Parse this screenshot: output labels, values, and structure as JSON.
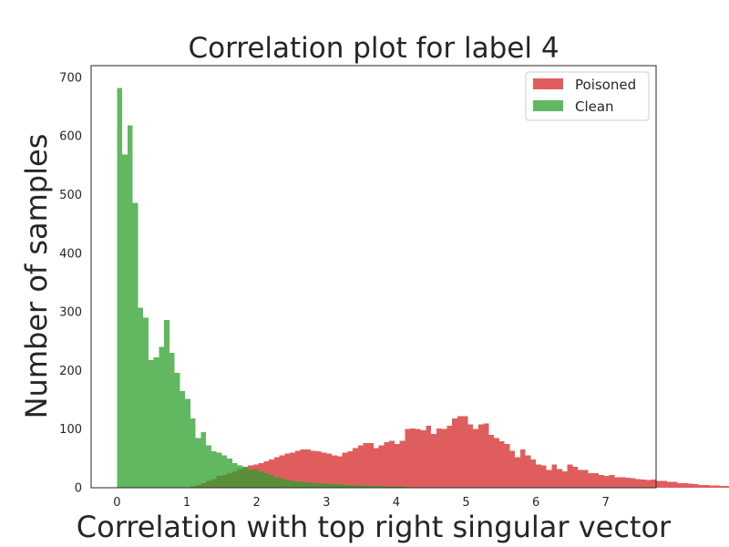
{
  "chart_data": {
    "type": "bar",
    "title": "Correlation plot for label 4",
    "xlabel": "Correlation with top right singular vector",
    "ylabel": "Number of samples",
    "xlim": [
      -0.37,
      7.72
    ],
    "ylim": [
      0,
      720
    ],
    "xticks": [
      0,
      1,
      2,
      3,
      4,
      5,
      6,
      7
    ],
    "yticks": [
      0,
      100,
      200,
      300,
      400,
      500,
      600,
      700
    ],
    "grid": false,
    "legend_position": "top-right",
    "bin_width": 0.075,
    "series": [
      {
        "name": "Poisoned",
        "color": "#d62728",
        "x_start": 1.05,
        "values": [
          2,
          5,
          8,
          12,
          15,
          20,
          22,
          25,
          28,
          32,
          35,
          38,
          40,
          42,
          45,
          48,
          52,
          55,
          58,
          60,
          63,
          65,
          65,
          63,
          62,
          60,
          58,
          55,
          54,
          60,
          62,
          68,
          72,
          76,
          76,
          68,
          72,
          78,
          80,
          75,
          80,
          100,
          101,
          100,
          98,
          106,
          92,
          101,
          100,
          106,
          118,
          122,
          122,
          108,
          100,
          108,
          110,
          90,
          85,
          79,
          75,
          63,
          52,
          65,
          55,
          48,
          40,
          38,
          30,
          40,
          32,
          28,
          40,
          36,
          30,
          30,
          25,
          25,
          22,
          20,
          22,
          18,
          18,
          17,
          16,
          15,
          14,
          13,
          14,
          12,
          12,
          10,
          10,
          8,
          8,
          7,
          6,
          5,
          5,
          4,
          4,
          3,
          3,
          2,
          4,
          3,
          2,
          2,
          2,
          2,
          4,
          2,
          2,
          2
        ]
      },
      {
        "name": "Clean",
        "color": "#2ca02c",
        "x_start": 0.0,
        "values": [
          682,
          568,
          618,
          486,
          307,
          290,
          218,
          222,
          240,
          286,
          230,
          196,
          165,
          152,
          118,
          85,
          95,
          72,
          62,
          60,
          55,
          50,
          42,
          38,
          36,
          30,
          32,
          28,
          25,
          22,
          18,
          16,
          14,
          12,
          11,
          10,
          9,
          8,
          8,
          7,
          7,
          6,
          6,
          5,
          5,
          5,
          4,
          4,
          3,
          3,
          3,
          2,
          2,
          2,
          2,
          1,
          1,
          1
        ]
      }
    ]
  }
}
